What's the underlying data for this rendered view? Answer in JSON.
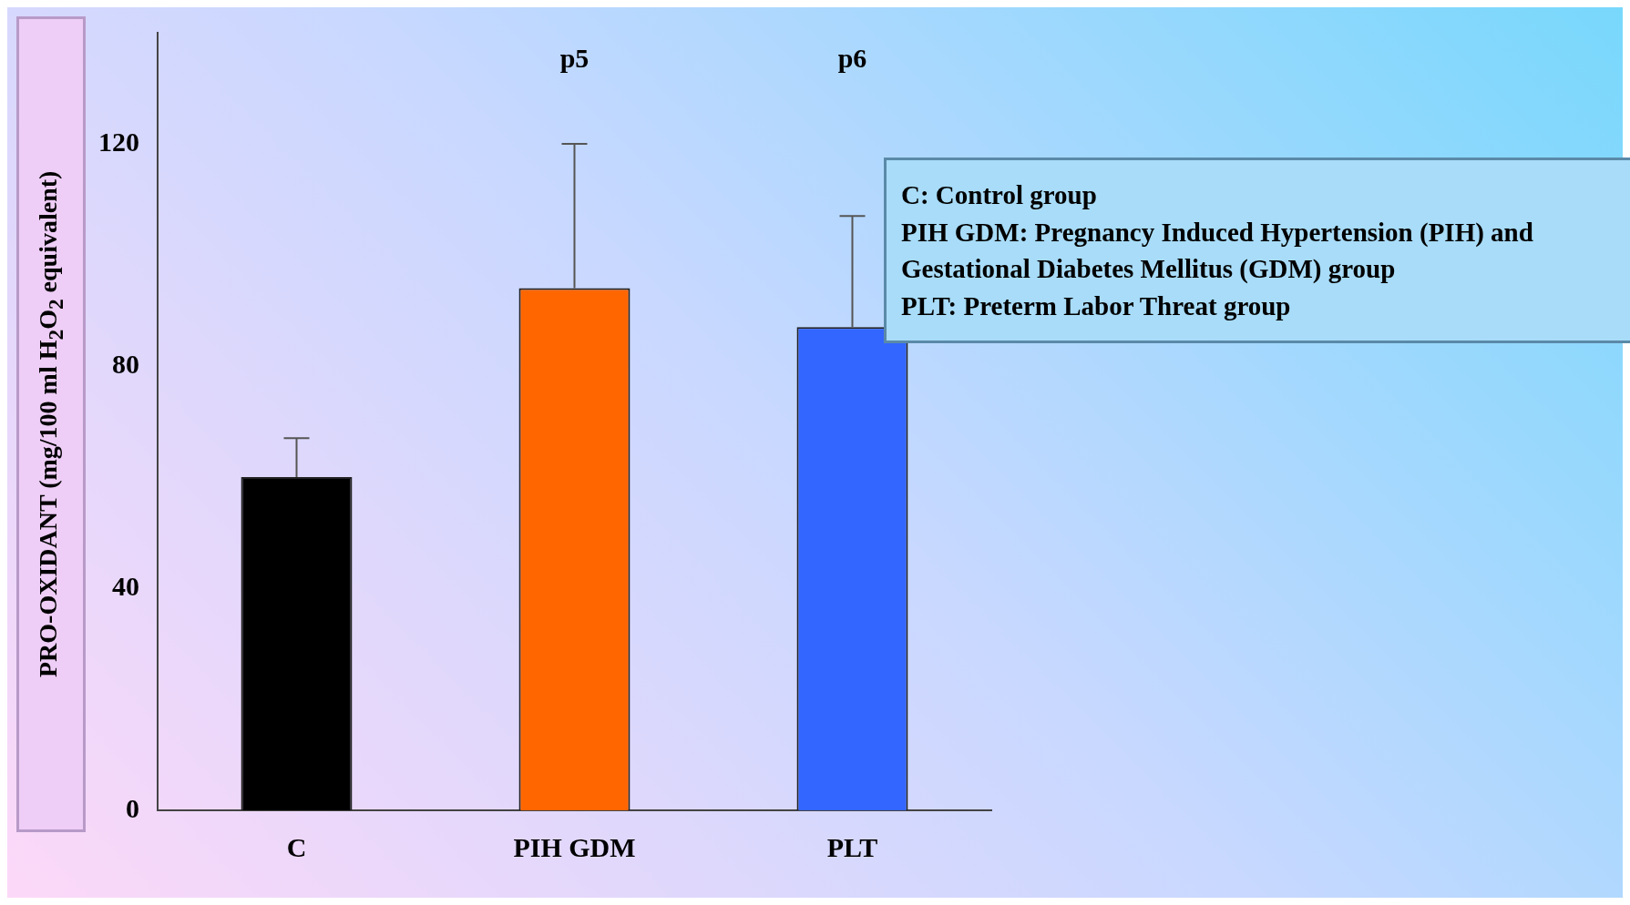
{
  "chart_data": {
    "type": "bar",
    "ylabel": "PRO-OXIDANT (mg/100 ml H$_{2}$O$_{2}$ equivalent)",
    "categories": [
      "C",
      "PIH GDM",
      "PLT"
    ],
    "values": [
      60,
      94,
      87
    ],
    "errors": [
      [
        60,
        67
      ],
      [
        94,
        120
      ],
      [
        87,
        107
      ]
    ],
    "colors": [
      "#000000",
      "#ff6600",
      "#3366ff"
    ],
    "ylim": [
      0,
      140
    ],
    "yticks": [
      0,
      40,
      80,
      120
    ],
    "grid": false,
    "legend": false,
    "annotations": [
      "p5",
      "p6",
      "C: Control group",
      "PIH GDM: Pregnancy Induced Hypertension (PIH) and Gestational Diabetes Mellitus (GDM) group",
      "PLT: Preterm Labor Threat group"
    ]
  }
}
